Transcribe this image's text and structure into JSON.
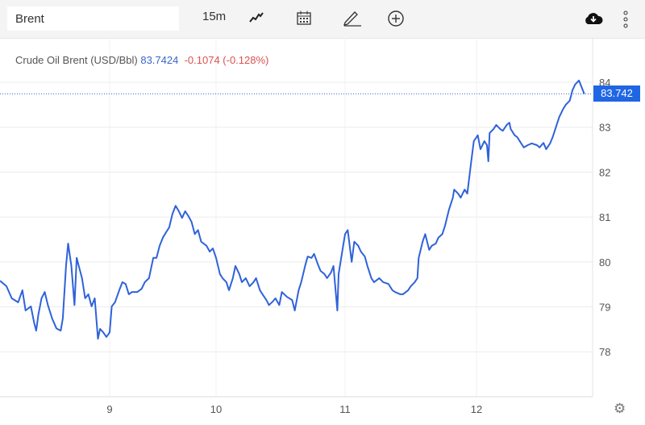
{
  "toolbar": {
    "search_value": "Brent",
    "interval": "15m",
    "icons": [
      "line-chart-icon",
      "calendar-icon",
      "pencil-icon",
      "plus-circle-icon",
      "cloud-download-icon",
      "more-vertical-icon"
    ]
  },
  "legend": {
    "name": "Crude Oil Brent (USD/Bbl)",
    "price": "83.7424",
    "change": "-0.1074 (-0.128%)"
  },
  "last_price_badge": "83.742",
  "colors": {
    "line": "#2f62d9",
    "badge": "#1f66e5",
    "change": "#d9534f"
  },
  "chart_data": {
    "type": "line",
    "title": "Crude Oil Brent (USD/Bbl)",
    "xlabel": "",
    "ylabel": "",
    "ylim": [
      77,
      84.5
    ],
    "y_ticks": [
      78,
      79,
      80,
      81,
      82,
      83,
      84
    ],
    "x_ticks": [
      9,
      10,
      11,
      12
    ],
    "x_tick_labels": [
      "9",
      "10",
      "11",
      "12"
    ],
    "grid": true,
    "series": [
      {
        "name": "Brent",
        "points": [
          [
            7.97,
            79.58
          ],
          [
            8.03,
            79.46
          ],
          [
            8.08,
            79.19
          ],
          [
            8.14,
            79.1
          ],
          [
            8.18,
            79.37
          ],
          [
            8.21,
            78.92
          ],
          [
            8.26,
            79.01
          ],
          [
            8.29,
            78.65
          ],
          [
            8.31,
            78.47
          ],
          [
            8.33,
            78.83
          ],
          [
            8.36,
            79.19
          ],
          [
            8.39,
            79.33
          ],
          [
            8.42,
            79.04
          ],
          [
            8.46,
            78.74
          ],
          [
            8.5,
            78.52
          ],
          [
            8.54,
            78.47
          ],
          [
            8.56,
            78.74
          ],
          [
            8.59,
            79.91
          ],
          [
            8.61,
            80.41
          ],
          [
            8.64,
            79.91
          ],
          [
            8.67,
            79.04
          ],
          [
            8.69,
            80.09
          ],
          [
            8.71,
            79.91
          ],
          [
            8.74,
            79.64
          ],
          [
            8.77,
            79.19
          ],
          [
            8.8,
            79.28
          ],
          [
            8.83,
            79.01
          ],
          [
            8.86,
            79.19
          ],
          [
            8.89,
            78.29
          ],
          [
            8.91,
            78.51
          ],
          [
            8.94,
            78.43
          ],
          [
            8.97,
            78.33
          ],
          [
            9.0,
            78.43
          ],
          [
            9.02,
            79.01
          ],
          [
            9.05,
            79.1
          ],
          [
            9.09,
            79.37
          ],
          [
            9.12,
            79.55
          ],
          [
            9.15,
            79.51
          ],
          [
            9.18,
            79.28
          ],
          [
            9.21,
            79.33
          ],
          [
            9.26,
            79.33
          ],
          [
            9.3,
            79.4
          ],
          [
            9.33,
            79.55
          ],
          [
            9.37,
            79.64
          ],
          [
            9.41,
            80.09
          ],
          [
            9.44,
            80.09
          ],
          [
            9.47,
            80.36
          ],
          [
            9.5,
            80.54
          ],
          [
            9.53,
            80.66
          ],
          [
            9.56,
            80.77
          ],
          [
            9.59,
            81.07
          ],
          [
            9.62,
            81.25
          ],
          [
            9.65,
            81.13
          ],
          [
            9.68,
            80.98
          ],
          [
            9.71,
            81.13
          ],
          [
            9.74,
            81.02
          ],
          [
            9.77,
            80.89
          ],
          [
            9.8,
            80.62
          ],
          [
            9.83,
            80.71
          ],
          [
            9.86,
            80.45
          ],
          [
            9.91,
            80.36
          ],
          [
            9.94,
            80.23
          ],
          [
            9.97,
            80.3
          ],
          [
            10.0,
            80.09
          ],
          [
            10.03,
            79.73
          ],
          [
            10.05,
            79.64
          ],
          [
            10.08,
            79.55
          ],
          [
            10.1,
            79.37
          ],
          [
            10.13,
            79.64
          ],
          [
            10.15,
            79.91
          ],
          [
            10.18,
            79.73
          ],
          [
            10.2,
            79.55
          ],
          [
            10.23,
            79.64
          ],
          [
            10.26,
            79.46
          ],
          [
            10.29,
            79.55
          ],
          [
            10.31,
            79.64
          ],
          [
            10.34,
            79.37
          ],
          [
            10.36,
            79.28
          ],
          [
            10.39,
            79.15
          ],
          [
            10.41,
            79.04
          ],
          [
            10.44,
            79.12
          ],
          [
            10.46,
            79.19
          ],
          [
            10.49,
            79.04
          ],
          [
            10.51,
            79.33
          ],
          [
            10.55,
            79.22
          ],
          [
            10.59,
            79.15
          ],
          [
            10.61,
            78.92
          ],
          [
            10.64,
            79.37
          ],
          [
            10.66,
            79.55
          ],
          [
            10.69,
            79.91
          ],
          [
            10.71,
            80.12
          ],
          [
            10.74,
            80.09
          ],
          [
            10.76,
            80.18
          ],
          [
            10.79,
            79.94
          ],
          [
            10.81,
            79.8
          ],
          [
            10.84,
            79.73
          ],
          [
            10.86,
            79.64
          ],
          [
            10.89,
            79.76
          ],
          [
            10.91,
            79.91
          ],
          [
            10.94,
            78.92
          ],
          [
            10.95,
            79.73
          ],
          [
            10.98,
            80.27
          ],
          [
            11.0,
            80.62
          ],
          [
            11.02,
            80.71
          ],
          [
            11.05,
            80.0
          ],
          [
            11.07,
            80.45
          ],
          [
            11.1,
            80.36
          ],
          [
            11.12,
            80.23
          ],
          [
            11.15,
            80.12
          ],
          [
            11.17,
            79.91
          ],
          [
            11.2,
            79.64
          ],
          [
            11.22,
            79.55
          ],
          [
            11.26,
            79.64
          ],
          [
            11.29,
            79.55
          ],
          [
            11.33,
            79.51
          ],
          [
            11.36,
            79.37
          ],
          [
            11.38,
            79.33
          ],
          [
            11.42,
            79.28
          ],
          [
            11.44,
            79.28
          ],
          [
            11.48,
            79.37
          ],
          [
            11.5,
            79.46
          ],
          [
            11.53,
            79.55
          ],
          [
            11.55,
            79.64
          ],
          [
            11.56,
            80.09
          ],
          [
            11.59,
            80.45
          ],
          [
            11.61,
            80.62
          ],
          [
            11.64,
            80.27
          ],
          [
            11.66,
            80.36
          ],
          [
            11.69,
            80.41
          ],
          [
            11.71,
            80.54
          ],
          [
            11.74,
            80.62
          ],
          [
            11.76,
            80.8
          ],
          [
            11.79,
            81.16
          ],
          [
            11.82,
            81.43
          ],
          [
            11.83,
            81.61
          ],
          [
            11.86,
            81.52
          ],
          [
            11.88,
            81.43
          ],
          [
            11.91,
            81.61
          ],
          [
            11.93,
            81.52
          ],
          [
            11.96,
            82.24
          ],
          [
            11.98,
            82.69
          ],
          [
            12.01,
            82.82
          ],
          [
            12.03,
            82.51
          ],
          [
            12.06,
            82.69
          ],
          [
            12.08,
            82.6
          ],
          [
            12.09,
            82.24
          ],
          [
            12.1,
            82.87
          ],
          [
            12.13,
            82.96
          ],
          [
            12.15,
            83.05
          ],
          [
            12.18,
            82.96
          ],
          [
            12.2,
            82.92
          ],
          [
            12.23,
            83.05
          ],
          [
            12.25,
            83.1
          ],
          [
            12.26,
            82.96
          ],
          [
            12.29,
            82.82
          ],
          [
            12.31,
            82.78
          ],
          [
            12.34,
            82.64
          ],
          [
            12.36,
            82.55
          ],
          [
            12.39,
            82.6
          ],
          [
            12.42,
            82.64
          ],
          [
            12.46,
            82.6
          ],
          [
            12.48,
            82.55
          ],
          [
            12.51,
            82.65
          ],
          [
            12.53,
            82.51
          ],
          [
            12.56,
            82.64
          ],
          [
            12.58,
            82.78
          ],
          [
            12.61,
            83.05
          ],
          [
            12.63,
            83.23
          ],
          [
            12.66,
            83.41
          ],
          [
            12.68,
            83.5
          ],
          [
            12.71,
            83.59
          ],
          [
            12.73,
            83.82
          ],
          [
            12.75,
            83.95
          ],
          [
            12.78,
            84.04
          ],
          [
            12.8,
            83.89
          ],
          [
            12.82,
            83.74
          ]
        ]
      }
    ],
    "last_value": 83.742
  }
}
